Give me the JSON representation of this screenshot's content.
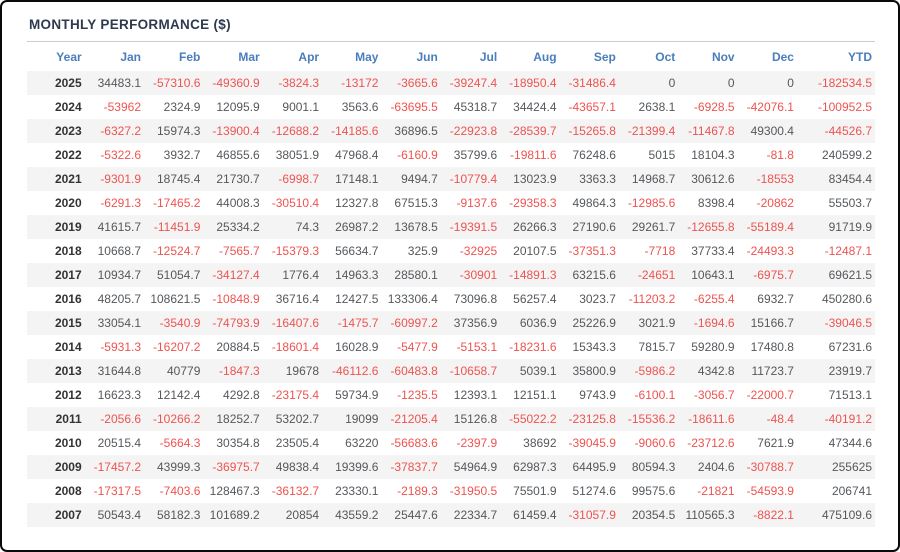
{
  "page": {
    "title": "MONTHLY PERFORMANCE ($)"
  },
  "colors": {
    "frame_border": "#0a0a0a",
    "title_text": "#2e3a4e",
    "header_text": "#4a7ebc",
    "positive_text": "#54585c",
    "negative_text": "#ee5350",
    "year_text": "#333333",
    "row_stripe": "#f4f4f4",
    "top_rule": "#cccccc"
  },
  "chart_data": {
    "type": "table",
    "title": "MONTHLY PERFORMANCE ($)",
    "columns": [
      "Year",
      "Jan",
      "Feb",
      "Mar",
      "Apr",
      "May",
      "Jun",
      "Jul",
      "Aug",
      "Sep",
      "Oct",
      "Nov",
      "Dec",
      "YTD"
    ],
    "rows": [
      {
        "year": "2025",
        "values": [
          "34483.1",
          "-57310.6",
          "-49360.9",
          "-3824.3",
          "-13172",
          "-3665.6",
          "-39247.4",
          "-18950.4",
          "-31486.4",
          "0",
          "0",
          "0",
          "-182534.5"
        ]
      },
      {
        "year": "2024",
        "values": [
          "-53962",
          "2324.9",
          "12095.9",
          "9001.1",
          "3563.6",
          "-63695.5",
          "45318.7",
          "34424.4",
          "-43657.1",
          "2638.1",
          "-6928.5",
          "-42076.1",
          "-100952.5"
        ]
      },
      {
        "year": "2023",
        "values": [
          "-6327.2",
          "15974.3",
          "-13900.4",
          "-12688.2",
          "-14185.6",
          "36896.5",
          "-22923.8",
          "-28539.7",
          "-15265.8",
          "-21399.4",
          "-11467.8",
          "49300.4",
          "-44526.7"
        ]
      },
      {
        "year": "2022",
        "values": [
          "-5322.6",
          "3932.7",
          "46855.6",
          "38051.9",
          "47968.4",
          "-6160.9",
          "35799.6",
          "-19811.6",
          "76248.6",
          "5015",
          "18104.3",
          "-81.8",
          "240599.2"
        ]
      },
      {
        "year": "2021",
        "values": [
          "-9301.9",
          "18745.4",
          "21730.7",
          "-6998.7",
          "17148.1",
          "9494.7",
          "-10779.4",
          "13023.9",
          "3363.3",
          "14968.7",
          "30612.6",
          "-18553",
          "83454.4"
        ]
      },
      {
        "year": "2020",
        "values": [
          "-6291.3",
          "-17465.2",
          "44008.3",
          "-30510.4",
          "12327.8",
          "67515.3",
          "-9137.6",
          "-29358.3",
          "49864.3",
          "-12985.6",
          "8398.4",
          "-20862",
          "55503.7"
        ]
      },
      {
        "year": "2019",
        "values": [
          "41615.7",
          "-11451.9",
          "25334.2",
          "74.3",
          "26987.2",
          "13678.5",
          "-19391.5",
          "26266.3",
          "27190.6",
          "29261.7",
          "-12655.8",
          "-55189.4",
          "91719.9"
        ]
      },
      {
        "year": "2018",
        "values": [
          "10668.7",
          "-12524.7",
          "-7565.7",
          "-15379.3",
          "56634.7",
          "325.9",
          "-32925",
          "20107.5",
          "-37351.3",
          "-7718",
          "37733.4",
          "-24493.3",
          "-12487.1"
        ]
      },
      {
        "year": "2017",
        "values": [
          "10934.7",
          "51054.7",
          "-34127.4",
          "1776.4",
          "14963.3",
          "28580.1",
          "-30901",
          "-14891.3",
          "63215.6",
          "-24651",
          "10643.1",
          "-6975.7",
          "69621.5"
        ]
      },
      {
        "year": "2016",
        "values": [
          "48205.7",
          "108621.5",
          "-10848.9",
          "36716.4",
          "12427.5",
          "133306.4",
          "73096.8",
          "56257.4",
          "3023.7",
          "-11203.2",
          "-6255.4",
          "6932.7",
          "450280.6"
        ]
      },
      {
        "year": "2015",
        "values": [
          "33054.1",
          "-3540.9",
          "-74793.9",
          "-16407.6",
          "-1475.7",
          "-60997.2",
          "37356.9",
          "6036.9",
          "25226.9",
          "3021.9",
          "-1694.6",
          "15166.7",
          "-39046.5"
        ]
      },
      {
        "year": "2014",
        "values": [
          "-5931.3",
          "-16207.2",
          "20884.5",
          "-18601.4",
          "16028.9",
          "-5477.9",
          "-5153.1",
          "-18231.6",
          "15343.3",
          "7815.7",
          "59280.9",
          "17480.8",
          "67231.6"
        ]
      },
      {
        "year": "2013",
        "values": [
          "31644.8",
          "40779",
          "-1847.3",
          "19678",
          "-46112.6",
          "-60483.8",
          "-10658.7",
          "5039.1",
          "35800.9",
          "-5986.2",
          "4342.8",
          "11723.7",
          "23919.7"
        ]
      },
      {
        "year": "2012",
        "values": [
          "16623.3",
          "12142.4",
          "4292.8",
          "-23175.4",
          "59734.9",
          "-1235.5",
          "12393.1",
          "12151.1",
          "9743.9",
          "-6100.1",
          "-3056.7",
          "-22000.7",
          "71513.1"
        ]
      },
      {
        "year": "2011",
        "values": [
          "-2056.6",
          "-10266.2",
          "18252.7",
          "53202.7",
          "19099",
          "-21205.4",
          "15126.8",
          "-55022.2",
          "-23125.8",
          "-15536.2",
          "-18611.6",
          "-48.4",
          "-40191.2"
        ]
      },
      {
        "year": "2010",
        "values": [
          "20515.4",
          "-5664.3",
          "30354.8",
          "23505.4",
          "63220",
          "-56683.6",
          "-2397.9",
          "38692",
          "-39045.9",
          "-9060.6",
          "-23712.6",
          "7621.9",
          "47344.6"
        ]
      },
      {
        "year": "2009",
        "values": [
          "-17457.2",
          "43999.3",
          "-36975.7",
          "49838.4",
          "19399.6",
          "-37837.7",
          "54964.9",
          "62987.3",
          "64495.9",
          "80594.3",
          "2404.6",
          "-30788.7",
          "255625"
        ]
      },
      {
        "year": "2008",
        "values": [
          "-17317.5",
          "-7403.6",
          "128467.3",
          "-36132.7",
          "23330.1",
          "-2189.3",
          "-31950.5",
          "75501.9",
          "51274.6",
          "99575.6",
          "-21821",
          "-54593.9",
          "206741"
        ]
      },
      {
        "year": "2007",
        "values": [
          "50543.4",
          "58182.3",
          "101689.2",
          "20854",
          "43559.2",
          "25447.6",
          "22334.7",
          "61459.4",
          "-31057.9",
          "20354.5",
          "110565.3",
          "-8822.1",
          "475109.6"
        ]
      }
    ]
  }
}
